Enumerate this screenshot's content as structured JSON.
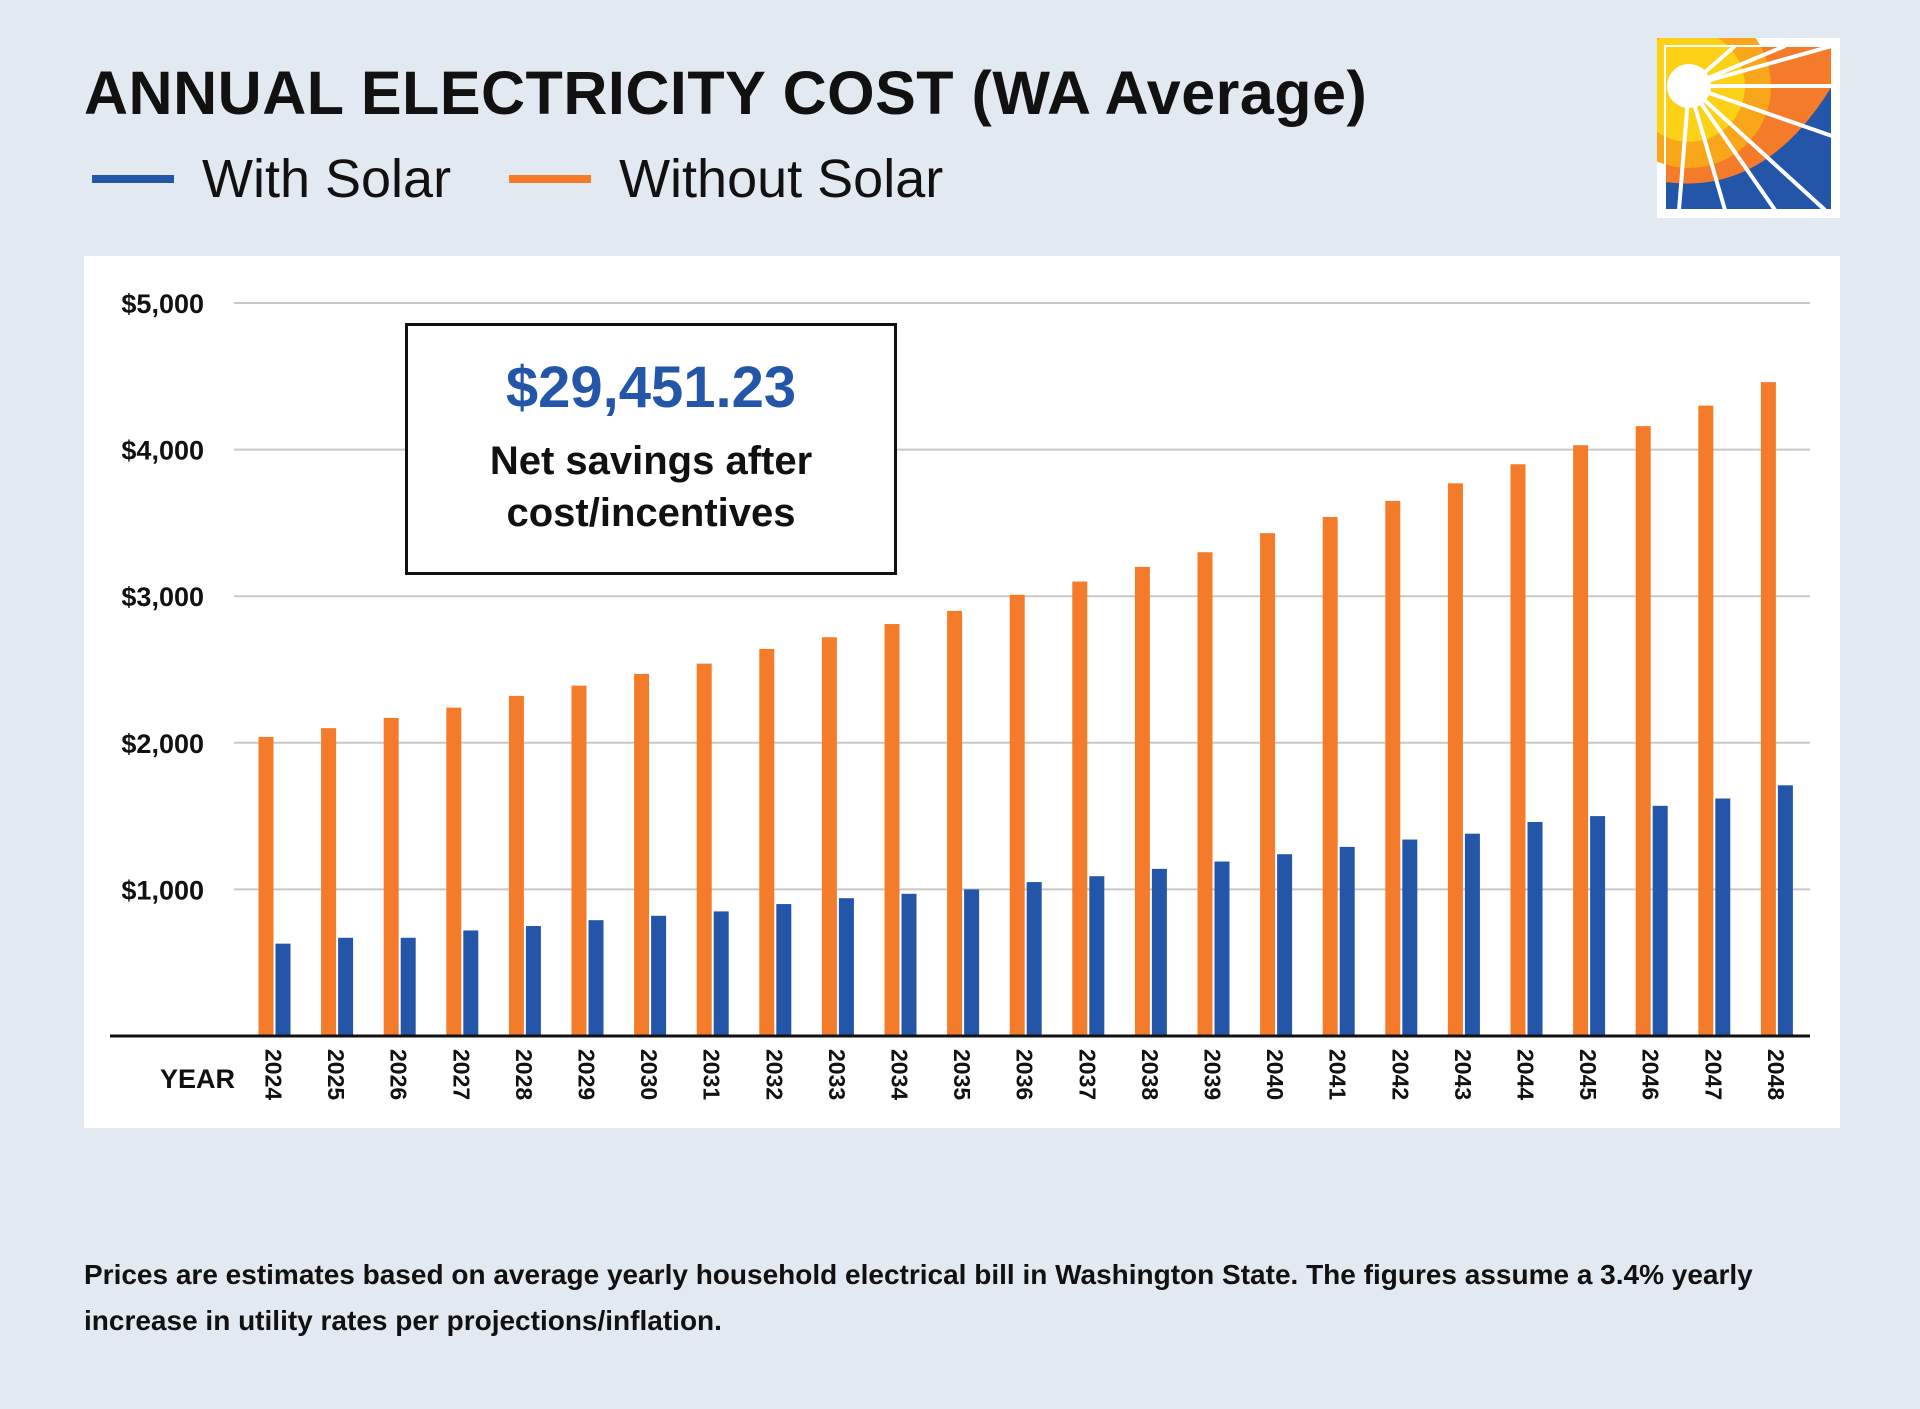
{
  "title": "ANNUAL ELECTRICITY COST (WA Average)",
  "legend": {
    "with_solar": "With Solar",
    "without_solar": "Without Solar"
  },
  "colors": {
    "with_solar": "#2356a8",
    "without_solar": "#f47b2a",
    "background": "#e3e9f1"
  },
  "callout": {
    "amount": "$29,451.23",
    "label": "Net savings after cost/incentives"
  },
  "footnote": "Prices are estimates based on average yearly household electrical bill in Washington State. The figures assume a 3.4% yearly increase in utility rates per projections/inflation.",
  "chart_data": {
    "type": "bar",
    "title": "ANNUAL ELECTRICITY COST (WA Average)",
    "xlabel": "YEAR",
    "ylabel": "",
    "ylim": [
      0,
      5000
    ],
    "yticks": [
      1000,
      2000,
      3000,
      4000,
      5000
    ],
    "ytick_labels": [
      "$1,000",
      "$2,000",
      "$3,000",
      "$4,000",
      "$5,000"
    ],
    "grid": true,
    "legend_position": "top-left",
    "categories": [
      "2024",
      "2025",
      "2026",
      "2027",
      "2028",
      "2029",
      "2030",
      "2031",
      "2032",
      "2033",
      "2034",
      "2035",
      "2036",
      "2037",
      "2038",
      "2039",
      "2040",
      "2041",
      "2042",
      "2043",
      "2044",
      "2045",
      "2046",
      "2047",
      "2048"
    ],
    "series": [
      {
        "name": "Without Solar",
        "color": "#f47b2a",
        "values": [
          2040,
          2100,
          2170,
          2240,
          2320,
          2390,
          2470,
          2540,
          2640,
          2720,
          2810,
          2900,
          3010,
          3100,
          3200,
          3300,
          3430,
          3540,
          3650,
          3770,
          3900,
          4030,
          4160,
          4300,
          4460
        ]
      },
      {
        "name": "With Solar",
        "color": "#2356a8",
        "values": [
          630,
          670,
          670,
          720,
          750,
          790,
          820,
          850,
          900,
          940,
          970,
          1000,
          1050,
          1090,
          1140,
          1190,
          1240,
          1290,
          1340,
          1380,
          1460,
          1500,
          1570,
          1620,
          1710
        ]
      }
    ]
  }
}
